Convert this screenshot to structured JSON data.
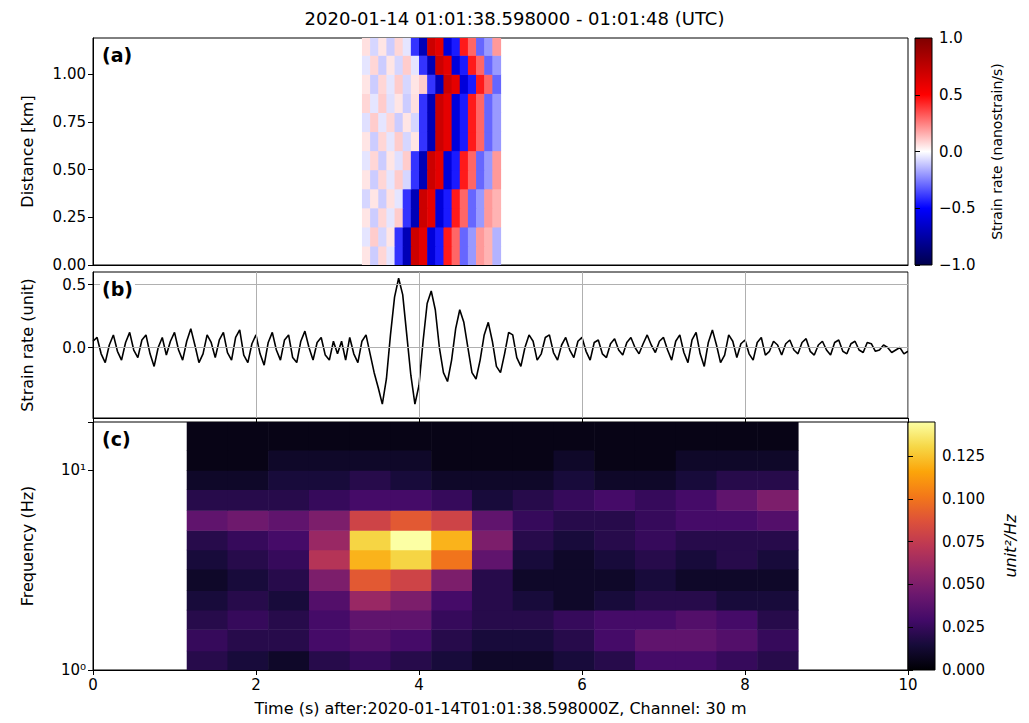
{
  "title": "2020-01-14 01:01:38.598000 - 01:01:48 (UTC)",
  "chart_data": [
    {
      "type": "heatmap",
      "panel": "(a)",
      "ylabel": "Distance [km]",
      "xlim": [
        0,
        10
      ],
      "ylim": [
        0,
        1.19
      ],
      "yticks": [
        {
          "value": 0,
          "label": "0.00"
        },
        {
          "value": 0.25,
          "label": "0.25"
        },
        {
          "value": 0.5,
          "label": "0.50"
        },
        {
          "value": 0.75,
          "label": "0.75"
        },
        {
          "value": 1,
          "label": "1.00"
        }
      ],
      "tick_labels": "y",
      "grid": false,
      "x_edges": [
        3.3,
        3.4,
        3.5,
        3.6,
        3.7,
        3.8,
        3.9,
        4.0,
        4.1,
        4.2,
        4.3,
        4.4,
        4.5,
        4.6,
        4.7,
        4.8,
        4.9,
        5.0
      ],
      "y_edges": [
        0,
        0.1,
        0.2,
        0.3,
        0.4,
        0.5,
        0.6,
        0.7,
        0.8,
        0.9,
        1.0,
        1.1,
        1.19
      ],
      "cells": [
        [
          0.05,
          -0.1,
          0.08,
          -0.05,
          -0.4,
          -0.7,
          0.7,
          0.6,
          -0.6,
          -0.45,
          0.45,
          0.3,
          -0.3,
          -0.2,
          0.2,
          0.15,
          -0.15
        ],
        [
          -0.05,
          0.1,
          -0.08,
          0.05,
          -0.4,
          -0.7,
          0.7,
          0.6,
          -0.6,
          -0.45,
          0.45,
          0.3,
          -0.3,
          -0.2,
          0.2,
          0.15,
          -0.15
        ],
        [
          0.05,
          -0.1,
          0.08,
          -0.05,
          0.1,
          -0.4,
          -0.7,
          0.7,
          0.6,
          -0.6,
          -0.45,
          0.45,
          0.3,
          -0.3,
          -0.2,
          0.2,
          0.15
        ],
        [
          -0.08,
          0.05,
          -0.1,
          0.06,
          -0.05,
          -0.4,
          -0.7,
          0.7,
          0.6,
          -0.6,
          -0.45,
          0.45,
          0.3,
          -0.3,
          -0.2,
          0.2,
          0.15
        ],
        [
          0.05,
          -0.1,
          0.08,
          -0.05,
          0.1,
          -0.08,
          -0.4,
          -0.7,
          0.7,
          0.6,
          -0.6,
          -0.45,
          0.45,
          0.3,
          -0.3,
          -0.2,
          0.2
        ],
        [
          -0.05,
          0.08,
          -0.1,
          0.05,
          -0.06,
          0.1,
          -0.4,
          -0.7,
          0.7,
          0.6,
          -0.6,
          -0.45,
          0.45,
          0.3,
          -0.3,
          -0.2,
          0.2
        ],
        [
          0.05,
          -0.1,
          0.08,
          -0.05,
          0.1,
          -0.08,
          0.05,
          -0.4,
          -0.7,
          0.7,
          0.6,
          -0.6,
          -0.45,
          0.45,
          0.3,
          -0.3,
          -0.2
        ],
        [
          -0.06,
          0.1,
          -0.05,
          0.08,
          -0.1,
          0.05,
          -0.08,
          -0.4,
          -0.7,
          0.7,
          0.6,
          -0.6,
          -0.45,
          0.45,
          0.3,
          -0.3,
          -0.2
        ],
        [
          0.08,
          -0.05,
          0.1,
          -0.06,
          0.05,
          -0.1,
          0.06,
          -0.4,
          -0.7,
          0.7,
          0.6,
          -0.6,
          -0.45,
          0.45,
          0.3,
          -0.3,
          -0.2
        ],
        [
          0.05,
          -0.1,
          0.08,
          -0.05,
          0.1,
          -0.08,
          0.05,
          0.1,
          -0.4,
          -0.7,
          0.7,
          0.6,
          -0.6,
          -0.45,
          0.45,
          0.3,
          -0.3
        ],
        [
          -0.05,
          0.08,
          -0.1,
          0.05,
          -0.08,
          0.1,
          -0.05,
          -0.4,
          -0.7,
          0.7,
          0.6,
          -0.6,
          -0.45,
          0.45,
          0.3,
          -0.3,
          -0.2
        ],
        [
          0.06,
          -0.08,
          0.05,
          -0.1,
          0.08,
          -0.05,
          -0.4,
          -0.7,
          0.7,
          0.6,
          -0.6,
          -0.45,
          0.45,
          0.3,
          -0.3,
          -0.2,
          0.2
        ]
      ],
      "colorbar_label": "Strain rate (nanostrain/s)",
      "colorbar_lim": [
        -1,
        1
      ],
      "colorbar_ticks": [
        {
          "value": -1,
          "label": "−1.0"
        },
        {
          "value": -0.5,
          "label": "−0.5"
        },
        {
          "value": 0,
          "label": "0.0"
        },
        0.5,
        {
          "value": 1,
          "label": "1.0"
        }
      ]
    },
    {
      "type": "line",
      "panel": "(b)",
      "ylabel": "Strain rate (unit)",
      "color": "#000000",
      "xlim": [
        0,
        10
      ],
      "ylim": [
        -0.56,
        0.6
      ],
      "xticks": [
        0,
        2,
        4,
        6,
        8,
        10
      ],
      "yticks": [
        {
          "value": 0,
          "label": "0.0"
        },
        0.5
      ],
      "grid": true,
      "tick_labels": "y",
      "x": [
        0,
        0.05,
        0.1,
        0.15,
        0.2,
        0.25,
        0.3,
        0.35,
        0.4,
        0.45,
        0.5,
        0.55,
        0.6,
        0.65,
        0.7,
        0.75,
        0.8,
        0.85,
        0.9,
        0.95,
        1,
        1.05,
        1.1,
        1.15,
        1.2,
        1.25,
        1.3,
        1.35,
        1.4,
        1.45,
        1.5,
        1.55,
        1.6,
        1.65,
        1.7,
        1.75,
        1.8,
        1.85,
        1.9,
        1.95,
        2,
        2.05,
        2.1,
        2.15,
        2.2,
        2.25,
        2.3,
        2.35,
        2.4,
        2.45,
        2.5,
        2.55,
        2.6,
        2.65,
        2.7,
        2.75,
        2.8,
        2.85,
        2.9,
        2.95,
        3,
        3.05,
        3.1,
        3.15,
        3.2,
        3.25,
        3.3,
        3.35,
        3.4,
        3.45,
        3.5,
        3.55,
        3.6,
        3.65,
        3.7,
        3.75,
        3.8,
        3.85,
        3.9,
        3.95,
        4,
        4.05,
        4.1,
        4.15,
        4.2,
        4.25,
        4.3,
        4.35,
        4.4,
        4.45,
        4.5,
        4.55,
        4.6,
        4.65,
        4.7,
        4.75,
        4.8,
        4.85,
        4.9,
        4.95,
        5,
        5.05,
        5.1,
        5.15,
        5.2,
        5.25,
        5.3,
        5.35,
        5.4,
        5.45,
        5.5,
        5.55,
        5.6,
        5.65,
        5.7,
        5.75,
        5.8,
        5.85,
        5.9,
        5.95,
        6,
        6.05,
        6.1,
        6.15,
        6.2,
        6.25,
        6.3,
        6.35,
        6.4,
        6.45,
        6.5,
        6.55,
        6.6,
        6.65,
        6.7,
        6.75,
        6.8,
        6.85,
        6.9,
        6.95,
        7,
        7.05,
        7.1,
        7.15,
        7.2,
        7.25,
        7.3,
        7.35,
        7.4,
        7.45,
        7.5,
        7.55,
        7.6,
        7.65,
        7.7,
        7.75,
        7.8,
        7.85,
        7.9,
        7.95,
        8,
        8.05,
        8.1,
        8.15,
        8.2,
        8.25,
        8.3,
        8.35,
        8.4,
        8.45,
        8.5,
        8.55,
        8.6,
        8.65,
        8.7,
        8.75,
        8.8,
        8.85,
        8.9,
        8.95,
        9,
        9.05,
        9.1,
        9.15,
        9.2,
        9.25,
        9.3,
        9.35,
        9.4,
        9.45,
        9.5,
        9.55,
        9.6,
        9.65,
        9.7,
        9.75,
        9.8,
        9.85,
        9.9,
        9.95,
        10
      ],
      "values": [
        0.05,
        0.08,
        -0.05,
        -0.12,
        0.02,
        0.1,
        -0.03,
        -0.1,
        0.04,
        0.12,
        -0.02,
        -0.08,
        0.06,
        0.1,
        -0.05,
        -0.15,
        0.0,
        0.08,
        -0.06,
        0.05,
        0.12,
        -0.02,
        -0.1,
        0.05,
        0.15,
        0.02,
        -0.12,
        -0.05,
        0.1,
        0.04,
        -0.08,
        0.06,
        0.12,
        -0.04,
        -0.1,
        0.08,
        0.14,
        -0.06,
        -0.12,
        0.03,
        0.1,
        -0.05,
        -0.14,
        0.04,
        0.12,
        -0.02,
        -0.1,
        0.06,
        0.1,
        -0.08,
        -0.12,
        0.05,
        0.13,
        0.0,
        -0.1,
        0.04,
        0.08,
        -0.06,
        -0.1,
        0.05,
        -0.05,
        0.05,
        -0.1,
        0.08,
        -0.05,
        -0.12,
        0.05,
        0.1,
        -0.05,
        -0.2,
        -0.32,
        -0.45,
        -0.25,
        0.1,
        0.4,
        0.55,
        0.42,
        0.1,
        -0.22,
        -0.45,
        -0.3,
        0.05,
        0.35,
        0.45,
        0.3,
        0.0,
        -0.2,
        -0.27,
        -0.1,
        0.15,
        0.3,
        0.2,
        0.0,
        -0.2,
        -0.25,
        -0.1,
        0.1,
        0.2,
        0.05,
        -0.15,
        -0.2,
        -0.05,
        0.12,
        0.1,
        -0.08,
        -0.15,
        0.0,
        0.1,
        0.05,
        -0.1,
        -0.05,
        0.08,
        0.1,
        -0.04,
        -0.1,
        0.02,
        0.08,
        -0.02,
        -0.08,
        0.05,
        0.08,
        -0.03,
        -0.1,
        0.04,
        0.06,
        -0.05,
        -0.08,
        0.03,
        0.07,
        -0.02,
        -0.06,
        0.04,
        0.08,
        0.0,
        -0.05,
        0.03,
        0.1,
        0.02,
        -0.04,
        0.05,
        0.08,
        -0.02,
        -0.1,
        0.05,
        0.1,
        -0.04,
        -0.12,
        0.06,
        0.12,
        -0.05,
        -0.15,
        0.04,
        0.14,
        0.02,
        -0.12,
        -0.06,
        0.1,
        0.05,
        -0.08,
        0.03,
        0.06,
        -0.05,
        -0.1,
        0.04,
        0.08,
        -0.06,
        -0.03,
        0.05,
        0.02,
        -0.06,
        0.03,
        0.06,
        -0.02,
        -0.05,
        0.04,
        0.07,
        -0.03,
        -0.06,
        0.02,
        0.05,
        -0.02,
        -0.06,
        0.04,
        0.06,
        -0.03,
        -0.05,
        0.03,
        0.05,
        -0.02,
        -0.04,
        0.04,
        0.03,
        -0.03,
        -0.02,
        0.02,
        0.0,
        -0.04,
        -0.02,
        0.0,
        -0.05,
        -0.03
      ]
    },
    {
      "type": "heatmap",
      "panel": "(c)",
      "xlabel": "Time (s) after:2020-01-14T01:01:38.598000Z, Channel: 30 m",
      "ylabel": "Frequency (Hz)",
      "log": "y",
      "grid": false,
      "xlim": [
        0,
        10
      ],
      "ylim": [
        1,
        17.4
      ],
      "xticks": [
        0,
        2,
        4,
        6,
        8,
        10
      ],
      "yticks": [
        {
          "value": 1,
          "label": "10⁰"
        },
        {
          "value": 10,
          "label": "10¹"
        }
      ],
      "x_edges": [
        1.15,
        1.65,
        2.15,
        2.65,
        3.15,
        3.65,
        4.15,
        4.65,
        5.15,
        5.65,
        6.15,
        6.65,
        7.15,
        7.65,
        8.15,
        8.65
      ],
      "y_edges": [
        1,
        1.25,
        1.6,
        2,
        2.5,
        3.2,
        4,
        5,
        6.3,
        8,
        10,
        12.6,
        17.4
      ],
      "cells": [
        [
          0.02,
          0.015,
          0.01,
          0.02,
          0.025,
          0.02,
          0.015,
          0.01,
          0.01,
          0.015,
          0.02,
          0.03,
          0.03,
          0.025,
          0.02
        ],
        [
          0.025,
          0.02,
          0.02,
          0.03,
          0.035,
          0.03,
          0.02,
          0.015,
          0.015,
          0.02,
          0.03,
          0.04,
          0.04,
          0.035,
          0.025
        ],
        [
          0.02,
          0.025,
          0.02,
          0.03,
          0.04,
          0.04,
          0.025,
          0.02,
          0.02,
          0.025,
          0.03,
          0.03,
          0.035,
          0.03,
          0.02
        ],
        [
          0.015,
          0.02,
          0.015,
          0.035,
          0.06,
          0.05,
          0.03,
          0.02,
          0.015,
          0.01,
          0.015,
          0.02,
          0.02,
          0.015,
          0.015
        ],
        [
          0.01,
          0.015,
          0.02,
          0.05,
          0.09,
          0.08,
          0.05,
          0.02,
          0.01,
          0.01,
          0.01,
          0.015,
          0.01,
          0.01,
          0.01
        ],
        [
          0.015,
          0.02,
          0.025,
          0.07,
          0.12,
          0.13,
          0.1,
          0.04,
          0.015,
          0.01,
          0.015,
          0.02,
          0.015,
          0.02,
          0.015
        ],
        [
          0.02,
          0.025,
          0.03,
          0.06,
          0.13,
          0.145,
          0.12,
          0.05,
          0.02,
          0.015,
          0.02,
          0.025,
          0.02,
          0.02,
          0.02
        ],
        [
          0.04,
          0.045,
          0.04,
          0.05,
          0.08,
          0.09,
          0.08,
          0.04,
          0.025,
          0.02,
          0.02,
          0.025,
          0.03,
          0.03,
          0.035
        ],
        [
          0.02,
          0.02,
          0.02,
          0.025,
          0.03,
          0.03,
          0.025,
          0.015,
          0.02,
          0.025,
          0.03,
          0.025,
          0.03,
          0.04,
          0.05
        ],
        [
          0.01,
          0.01,
          0.015,
          0.015,
          0.02,
          0.015,
          0.01,
          0.01,
          0.01,
          0.015,
          0.01,
          0.01,
          0.015,
          0.02,
          0.02
        ],
        [
          0.005,
          0.005,
          0.01,
          0.01,
          0.01,
          0.01,
          0.005,
          0.005,
          0.005,
          0.01,
          0.005,
          0.005,
          0.01,
          0.01,
          0.01
        ],
        [
          0.005,
          0.005,
          0.005,
          0.005,
          0.005,
          0.005,
          0.005,
          0.005,
          0.005,
          0.005,
          0.005,
          0.005,
          0.005,
          0.005,
          0.005
        ]
      ],
      "colorbar_label": "unit²/Hz",
      "colorbar_lim": [
        0,
        0.145
      ],
      "colorbar_ticks": [
        {
          "value": 0,
          "label": "0.000"
        },
        0.025,
        {
          "value": 0.05,
          "label": "0.050"
        },
        0.075,
        {
          "value": 0.1,
          "label": "0.100"
        },
        0.125
      ]
    }
  ]
}
